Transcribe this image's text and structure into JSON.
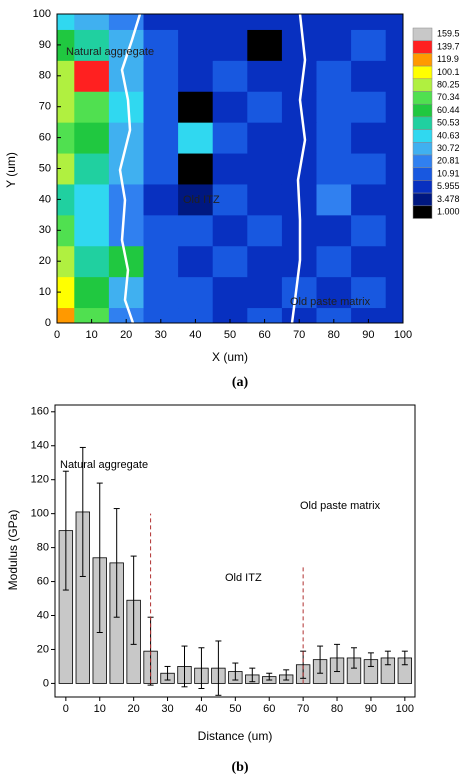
{
  "chart_data": [
    {
      "type": "contour",
      "x": [
        0,
        10,
        20,
        30,
        40,
        50,
        60,
        70,
        80,
        90,
        100
      ],
      "y": [
        0,
        10,
        20,
        30,
        40,
        50,
        60,
        70,
        80,
        90,
        100
      ],
      "z": [
        [
          130,
          80,
          30,
          12,
          15,
          10,
          12,
          8,
          12,
          10,
          8
        ],
        [
          110,
          70,
          35,
          15,
          12,
          10,
          9,
          12,
          10,
          12,
          9
        ],
        [
          90,
          60,
          70,
          12,
          10,
          14,
          8,
          10,
          12,
          9,
          10
        ],
        [
          80,
          45,
          30,
          14,
          12,
          10,
          12,
          9,
          10,
          12,
          8
        ],
        [
          60,
          50,
          25,
          10,
          4,
          12,
          10,
          8,
          25,
          10,
          9
        ],
        [
          90,
          60,
          35,
          12,
          3,
          10,
          9,
          10,
          15,
          12,
          10
        ],
        [
          80,
          70,
          40,
          14,
          45,
          12,
          10,
          9,
          12,
          10,
          8
        ],
        [
          90,
          80,
          45,
          12,
          2,
          10,
          12,
          10,
          15,
          20,
          10
        ],
        [
          100,
          145,
          40,
          15,
          10,
          12,
          9,
          10,
          12,
          10,
          9
        ],
        [
          70,
          60,
          35,
          12,
          10,
          8,
          2,
          10,
          9,
          12,
          10
        ],
        [
          50,
          40,
          30,
          10,
          8,
          10,
          9,
          8,
          10,
          9,
          8
        ]
      ],
      "levels": [
        159.5,
        139.7,
        119.9,
        100.1,
        80.25,
        70.34,
        60.44,
        50.53,
        40.63,
        30.72,
        20.81,
        10.91,
        5.955,
        3.478,
        {
          "value": 1,
          "label": "1.000"
        }
      ],
      "colors": [
        "#c8c8c8",
        "#ff2020",
        "#ff9900",
        "#ffff00",
        "#b0f040",
        "#50e050",
        "#20c840",
        "#20d0a0",
        "#30d8f0",
        "#40b0f0",
        "#3080f0",
        "#1858e0",
        "#0830c0",
        "#001880",
        "#000000"
      ],
      "xlim": [
        0,
        100
      ],
      "xticks": [
        0,
        10,
        20,
        30,
        40,
        50,
        60,
        70,
        80,
        90,
        100
      ],
      "ylim": [
        0,
        100
      ],
      "yticks": [
        0,
        10,
        20,
        30,
        40,
        50,
        60,
        70,
        80,
        90,
        100
      ],
      "xlabel": "X (um)",
      "ylabel": "Y (um)",
      "annotations": [
        "Natural aggregate",
        "Old ITZ",
        "Old paste matrix"
      ],
      "caption": "(a)"
    },
    {
      "type": "bar",
      "x": [
        0,
        5,
        10,
        15,
        20,
        25,
        30,
        35,
        40,
        45,
        50,
        55,
        60,
        65,
        70,
        75,
        80,
        85,
        90,
        95,
        100
      ],
      "values": [
        90,
        101,
        74,
        71,
        49,
        19,
        6,
        10,
        9,
        9,
        7,
        5,
        4,
        5,
        11,
        14,
        15,
        15,
        14,
        15,
        15
      ],
      "errors": [
        35,
        38,
        44,
        32,
        26,
        20,
        4,
        12,
        12,
        16,
        5,
        4,
        2,
        3,
        8,
        8,
        8,
        6,
        4,
        4,
        4
      ],
      "color": "#c8c8c8",
      "reference_lines": [
        {
          "x": 25,
          "top": 100
        },
        {
          "x": 70,
          "top": 70
        }
      ],
      "xlim": [
        -3.2,
        103
      ],
      "xticks": [
        0,
        10,
        20,
        30,
        40,
        50,
        60,
        70,
        80,
        90,
        100
      ],
      "ylim": [
        -8,
        164
      ],
      "yticks": [
        0,
        20,
        40,
        60,
        80,
        100,
        120,
        140,
        160
      ],
      "xlabel": "Distance (um)",
      "ylabel": "Modulus (GPa)",
      "annotations": [
        "Natural aggregate",
        "Old ITZ",
        "Old paste matrix"
      ],
      "caption": "(b)"
    }
  ]
}
